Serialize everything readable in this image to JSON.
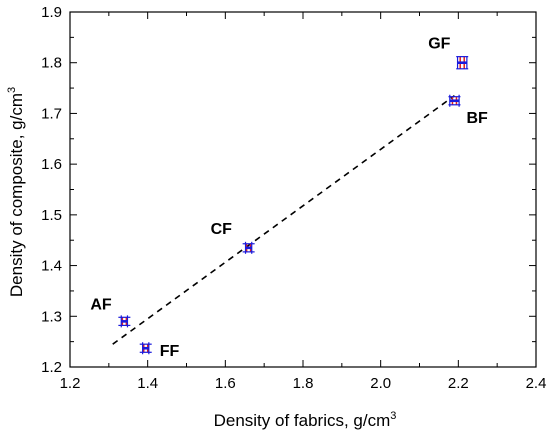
{
  "chart_data": {
    "type": "scatter",
    "title": "",
    "xlabel": "Density of fabrics, g/cm",
    "xlabel_superscript": "3",
    "ylabel": "Density of composite, g/cm",
    "ylabel_superscript": "3",
    "xlim": [
      1.2,
      2.4
    ],
    "ylim": [
      1.2,
      1.9
    ],
    "xticks": [
      "1.2",
      "1.4",
      "1.6",
      "1.8",
      "2.0",
      "2.2",
      "2.4"
    ],
    "yticks": [
      "1.2",
      "1.3",
      "1.4",
      "1.5",
      "1.6",
      "1.7",
      "1.8",
      "1.9"
    ],
    "grid": false,
    "legend": "none",
    "points": [
      {
        "label": "AF",
        "x": 1.34,
        "y": 1.29,
        "xerr": 0.008,
        "yerr": 0.008
      },
      {
        "label": "FF",
        "x": 1.395,
        "y": 1.237,
        "xerr": 0.008,
        "yerr": 0.008
      },
      {
        "label": "CF",
        "x": 1.66,
        "y": 1.435,
        "xerr": 0.008,
        "yerr": 0.008
      },
      {
        "label": "BF",
        "x": 2.19,
        "y": 1.725,
        "xerr": 0.012,
        "yerr": 0.008
      },
      {
        "label": "GF",
        "x": 2.21,
        "y": 1.8,
        "xerr": 0.012,
        "yerr": 0.012
      }
    ],
    "fit_line": {
      "style": "dashed",
      "x": [
        1.31,
        2.19
      ],
      "y": [
        1.245,
        1.735
      ]
    },
    "colors": {
      "x_error_bar": "#1a1adc",
      "y_error_bar": "#e0201c",
      "fit_line": "#000000"
    }
  }
}
